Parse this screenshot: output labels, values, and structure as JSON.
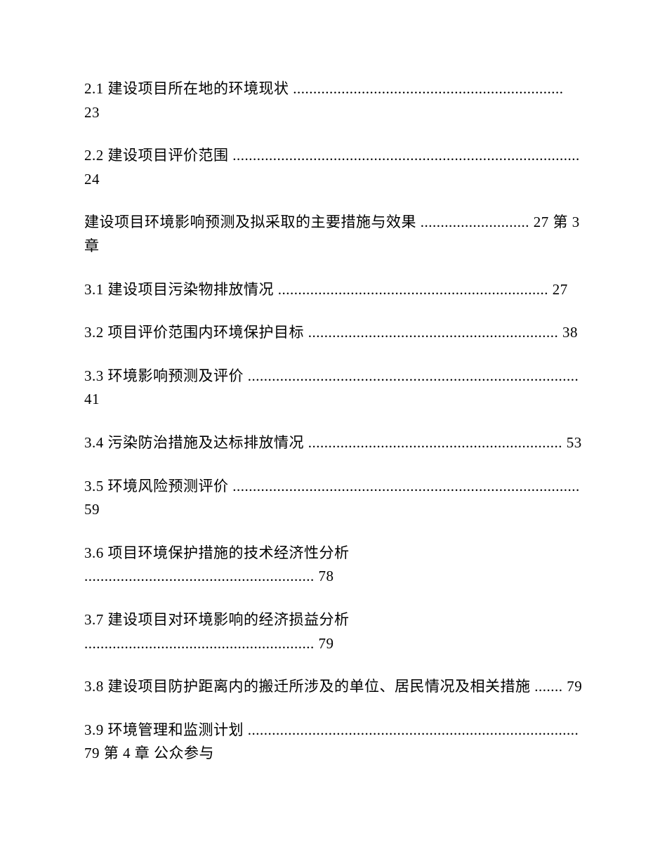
{
  "page": {
    "background_color": "#ffffff",
    "text_color": "#000000",
    "font_size_pt": 16,
    "font_family": "SimSun"
  },
  "toc": [
    {
      "section": "2.1",
      "title": "建设项目所在地的环境现状",
      "leader": "...................................................................",
      "page": "23",
      "suffix": ""
    },
    {
      "section": "2.2",
      "title": "建设项目评价范围",
      "leader": "......................................................................................",
      "page": "24",
      "suffix": ""
    },
    {
      "section": "",
      "title": "建设项目环境影响预测及拟采取的主要措施与效果",
      "leader": "...........................",
      "page": "27",
      "suffix": "第 3 章"
    },
    {
      "section": "3.1",
      "title": "建设项目污染物排放情况",
      "leader": "...................................................................",
      "page": "27",
      "suffix": ""
    },
    {
      "section": "3.2",
      "title": "项目评价范围内环境保护目标",
      "leader": "..............................................................",
      "page": "38",
      "suffix": ""
    },
    {
      "section": "3.3",
      "title": "环境影响预测及评价",
      "leader": "..................................................................................",
      "page": "41",
      "suffix": ""
    },
    {
      "section": "3.4",
      "title": "污染防治措施及达标排放情况",
      "leader": "...............................................................",
      "page": "53",
      "suffix": ""
    },
    {
      "section": "3.5",
      "title": "环境风险预测评价",
      "leader": "......................................................................................",
      "page": "59",
      "suffix": ""
    },
    {
      "section": "3.6",
      "title": "项目环境保护措施的技术经济性分析",
      "leader": ".........................................................",
      "page": "78",
      "suffix": ""
    },
    {
      "section": "3.7",
      "title": "建设项目对环境影响的经济损益分析",
      "leader": ".........................................................",
      "page": "79",
      "suffix": ""
    },
    {
      "section": "3.8",
      "title": "建设项目防护距离内的搬迁所涉及的单位、居民情况及相关措施",
      "leader": ".......",
      "page": "79",
      "suffix": ""
    },
    {
      "section": "3.9",
      "title": "环境管理和监测计划",
      "leader": "..................................................................................",
      "page": "79",
      "suffix": "第 4 章 公众参与"
    }
  ]
}
